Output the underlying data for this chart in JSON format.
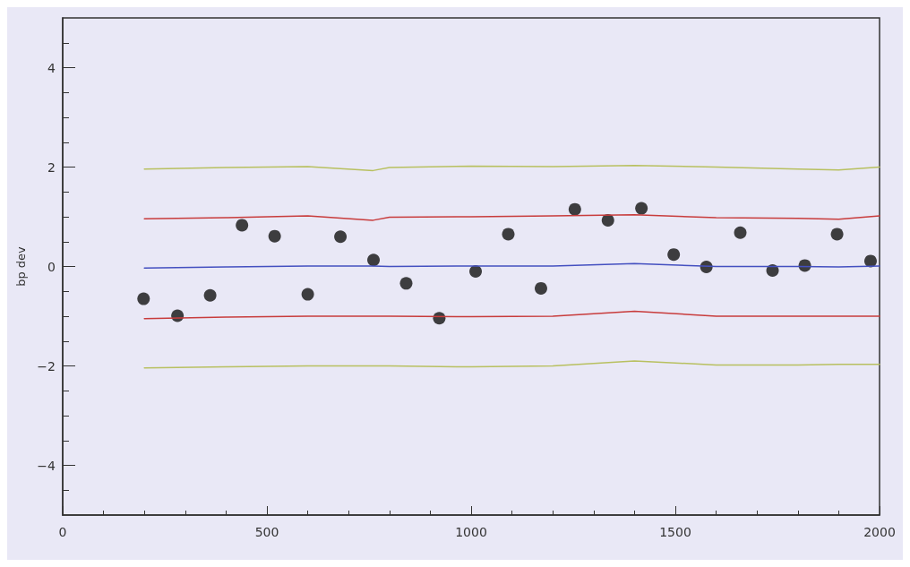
{
  "chart_data": {
    "type": "scatter",
    "ylabel": "bp dev",
    "xlim": [
      0,
      2000
    ],
    "xticks": [
      0,
      500,
      1000,
      1500,
      2000
    ],
    "ylim": [
      -5,
      5
    ],
    "yticks": [
      -4,
      -2,
      0,
      2,
      4
    ],
    "grid": false,
    "series": [
      {
        "marker": "circle",
        "color": "#111111",
        "x": [
          198,
          281,
          361,
          439,
          519,
          600,
          680,
          761,
          841,
          922,
          1011,
          1091,
          1171,
          1254,
          1335,
          1417,
          1496,
          1576,
          1659,
          1738,
          1817,
          1896,
          1978
        ],
        "values": [
          -0.65,
          -0.99,
          -0.58,
          0.83,
          0.61,
          -0.56,
          0.6,
          0.13,
          -0.34,
          -1.04,
          -0.1,
          0.65,
          -0.44,
          1.15,
          0.93,
          1.17,
          0.24,
          -0.01,
          0.68,
          -0.08,
          0.02,
          0.65,
          0.11
        ]
      },
      {
        "type": "line",
        "color": "#b8c060",
        "x": [
          200,
          400,
          600,
          760,
          800,
          1000,
          1200,
          1400,
          1600,
          1800,
          1900,
          2000
        ],
        "values": [
          1.96,
          1.99,
          2.01,
          1.93,
          1.99,
          2.02,
          2.01,
          2.03,
          2.0,
          1.96,
          1.94,
          2.0
        ]
      },
      {
        "type": "line",
        "color": "#c83c3c",
        "x": [
          200,
          400,
          600,
          760,
          800,
          1000,
          1200,
          1400,
          1600,
          1800,
          1900,
          2000
        ],
        "values": [
          0.96,
          0.98,
          1.02,
          0.93,
          0.99,
          1.0,
          1.02,
          1.04,
          0.98,
          0.97,
          0.95,
          1.02
        ]
      },
      {
        "type": "line",
        "color": "#4450c0",
        "x": [
          200,
          400,
          600,
          760,
          800,
          1000,
          1200,
          1400,
          1600,
          1800,
          1900,
          2000
        ],
        "values": [
          -0.03,
          -0.01,
          0.01,
          0.01,
          0.0,
          0.01,
          0.01,
          0.06,
          0.0,
          0.0,
          -0.01,
          0.01
        ]
      },
      {
        "type": "line",
        "color": "#c83c3c",
        "x": [
          200,
          400,
          600,
          760,
          800,
          1000,
          1200,
          1400,
          1600,
          1800,
          1900,
          2000
        ],
        "values": [
          -1.05,
          -1.02,
          -1.0,
          -1.0,
          -1.0,
          -1.01,
          -1.0,
          -0.9,
          -1.0,
          -1.0,
          -1.0,
          -1.0
        ]
      },
      {
        "type": "line",
        "color": "#b8c060",
        "x": [
          200,
          400,
          600,
          760,
          800,
          1000,
          1200,
          1400,
          1600,
          1800,
          1900,
          2000
        ],
        "values": [
          -2.04,
          -2.02,
          -2.0,
          -2.0,
          -2.0,
          -2.02,
          -2.0,
          -1.9,
          -1.98,
          -1.98,
          -1.97,
          -1.97
        ]
      }
    ]
  }
}
